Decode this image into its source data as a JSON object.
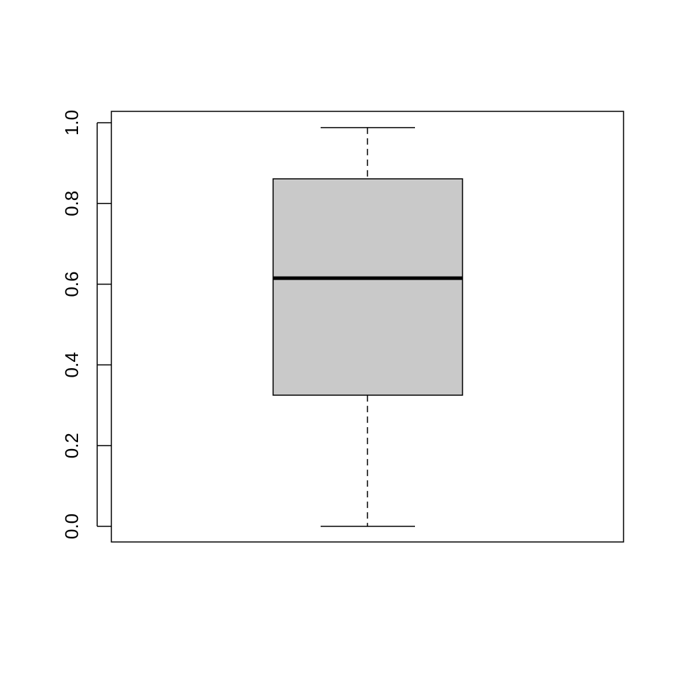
{
  "chart_data": {
    "type": "boxplot",
    "title": "",
    "xlabel": "",
    "ylabel": "",
    "ylim": [
      0,
      1.0
    ],
    "y_ticks": [
      "0.0",
      "0.2",
      "0.4",
      "0.6",
      "0.8",
      "1.0"
    ],
    "grid": false,
    "series": [
      {
        "min": 0.0,
        "q1": 0.325,
        "median": 0.615,
        "q3": 0.861,
        "max": 0.988
      }
    ],
    "colors": {
      "box_fill": "#c9c9c9",
      "stroke": "#000000"
    }
  }
}
